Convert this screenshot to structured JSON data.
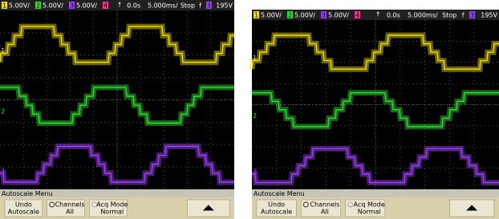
{
  "screens": [
    {
      "channels": [
        {
          "label": "1",
          "scale": "5.00V/"
        },
        {
          "label": "2",
          "scale": "5.00V/"
        },
        {
          "label": "3",
          "scale": "5.00V/"
        },
        {
          "label": "4"
        }
      ],
      "time_offset": "0.0s",
      "time_scale": "5.000ms/",
      "run_state": "Stop",
      "trigger_channel": "3",
      "trigger_level": "195V",
      "menu_title": "Autoscale Menu",
      "buttons": [
        {
          "lines": [
            "Undo",
            "Autoscale"
          ]
        },
        {
          "lines": [
            "Channels",
            "All"
          ]
        },
        {
          "lines": [
            "Acq Mode",
            "Normal"
          ]
        }
      ]
    },
    {
      "channels": [
        {
          "label": "1",
          "scale": "5.00V/"
        },
        {
          "label": "2",
          "scale": "5.00V/"
        },
        {
          "label": "3",
          "scale": "5.00V/"
        },
        {
          "label": "4"
        }
      ],
      "time_offset": "0.0s",
      "time_scale": "5.000ms/",
      "run_state": "Stop",
      "trigger_channel": "3",
      "trigger_level": "195V",
      "menu_title": "Autoscale Menu",
      "buttons": [
        {
          "lines": [
            "Undo",
            "Autoscale"
          ]
        },
        {
          "lines": [
            "Channels",
            "All"
          ]
        },
        {
          "lines": [
            "Acq Mode",
            "Normal"
          ]
        }
      ]
    }
  ]
}
